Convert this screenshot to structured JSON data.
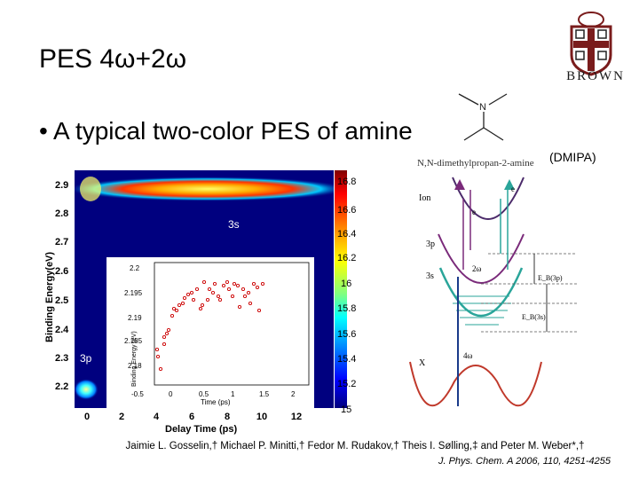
{
  "slide": {
    "title": "PES 4ω+2ω",
    "bullet": "A typical two-color PES of amine",
    "logo_text": "BROWN",
    "molecule_name": "N,N-dimethylpropan-2-amine",
    "molecule_abbr": "(DMIPA)",
    "citation_authors": "Jaimie L. Gosselin,† Michael P. Minitti,† Fedor M. Rudakov,† Theis I. Sølling,‡ and Peter M. Weber*,†",
    "citation_journal": "J. Phys. Chem. A 2006, 110, 4251-4255"
  },
  "pes_map": {
    "y_title": "Binding Energy(eV)",
    "x_title": "Delay Time (ps)",
    "y_ticks": [
      "2.9",
      "2.8",
      "2.7",
      "2.6",
      "2.5",
      "2.4",
      "2.3",
      "2.2"
    ],
    "x_ticks": [
      "0",
      "2",
      "4",
      "6",
      "8",
      "10",
      "12"
    ],
    "colorbar_ticks": [
      "16.8",
      "16.6",
      "16.4",
      "16.2",
      "16",
      "15.8",
      "15.6",
      "15.4",
      "15.2",
      "15"
    ],
    "label_3s": "3s",
    "label_3p": "3p"
  },
  "inset": {
    "y_title": "Binding Energy (eV)",
    "x_title": "Time (ps)",
    "y_ticks": [
      "2.2",
      "2.195",
      "2.19",
      "2.185",
      "2.18"
    ],
    "x_ticks": [
      "-0.5",
      "0",
      "0.5",
      "1",
      "1.5",
      "2"
    ]
  },
  "energy_diagram": {
    "labels": {
      "ion": "Ion",
      "p3": "3p",
      "s3": "3s",
      "x": "X",
      "e1": "e",
      "e2": "e",
      "omega2": "2ω",
      "omega4": "4ω",
      "eb3p": "E_B(3p)",
      "eb3s": "E_B(3s)"
    }
  }
}
